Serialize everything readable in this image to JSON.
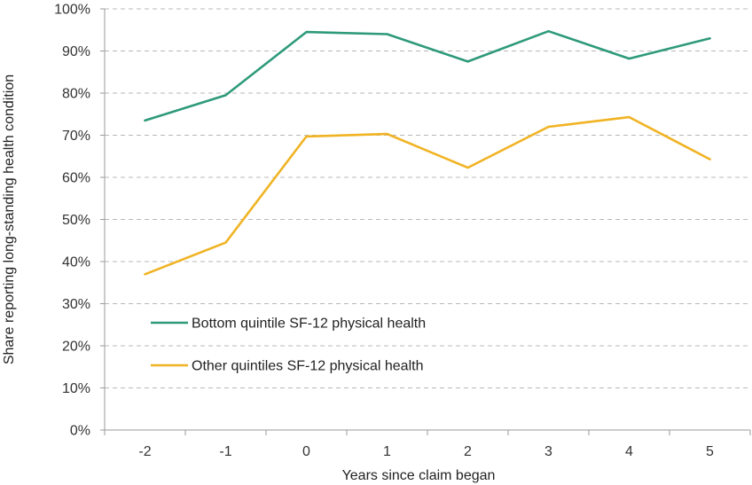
{
  "chart_data": {
    "type": "line",
    "title": "",
    "xlabel": "Years since claim began",
    "ylabel": "Share reporting long-standing health condition",
    "x": [
      -2,
      -1,
      0,
      1,
      2,
      3,
      4,
      5
    ],
    "x_tick_labels": [
      "-2",
      "-1",
      "0",
      "1",
      "2",
      "3",
      "4",
      "5"
    ],
    "ylim": [
      0,
      100
    ],
    "y_tick_labels": [
      "0%",
      "10%",
      "20%",
      "30%",
      "40%",
      "50%",
      "60%",
      "70%",
      "80%",
      "90%",
      "100%"
    ],
    "grid": "horizontal dashed",
    "legend_position": "inside lower-left",
    "series": [
      {
        "name": "Bottom quintile SF-12 physical health",
        "color": "#2e9a7a",
        "values": [
          73.5,
          79.5,
          94.5,
          94.0,
          87.5,
          94.7,
          88.2,
          93.0
        ]
      },
      {
        "name": "Other quintiles SF-12 physical health",
        "color": "#f0b323",
        "values": [
          37.0,
          44.5,
          69.7,
          70.3,
          62.3,
          72.0,
          74.3,
          64.3
        ]
      }
    ]
  }
}
